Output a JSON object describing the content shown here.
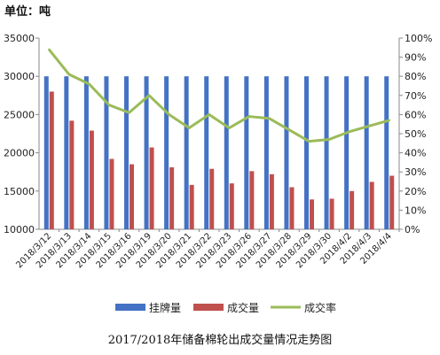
{
  "chart_data": {
    "type": "bar",
    "unit_label": "单位：吨",
    "title": "2017/2018年储备棉轮出成交量情况走势图",
    "categories": [
      "2018/3/12",
      "2018/3/13",
      "2018/3/14",
      "2018/3/15",
      "2018/3/16",
      "2018/3/19",
      "2018/3/20",
      "2018/3/21",
      "2018/3/22",
      "2018/3/23",
      "2018/3/26",
      "2018/3/27",
      "2018/3/28",
      "2018/3/29",
      "2018/3/30",
      "2018/4/2",
      "2018/4/3",
      "2018/4/4"
    ],
    "series": [
      {
        "name": "挂牌量",
        "axis": "left",
        "kind": "bar",
        "color": "#4472C4",
        "values": [
          30000,
          30000,
          30000,
          30000,
          30000,
          30000,
          30000,
          30000,
          30000,
          30000,
          30000,
          30000,
          30000,
          30000,
          30000,
          30000,
          30000,
          30000
        ]
      },
      {
        "name": "成交量",
        "axis": "left",
        "kind": "bar",
        "color": "#C0504D",
        "values": [
          28000,
          24200,
          22900,
          19200,
          18500,
          20700,
          18100,
          15800,
          17900,
          16000,
          17600,
          17200,
          15500,
          13900,
          14000,
          15000,
          16200,
          17000
        ]
      },
      {
        "name": "成交率",
        "axis": "right",
        "kind": "line",
        "color": "#9BBB59",
        "values": [
          94,
          81,
          76,
          65,
          61,
          70,
          60,
          53,
          60,
          53,
          59,
          58,
          52,
          46,
          47,
          51,
          54,
          57
        ]
      }
    ],
    "y_left": {
      "min": 10000,
      "max": 35000,
      "step": 5000,
      "ticks": [
        "10000",
        "15000",
        "20000",
        "25000",
        "30000",
        "35000"
      ]
    },
    "y_right": {
      "min": 0,
      "max": 100,
      "step": 10,
      "ticks": [
        "0%",
        "10%",
        "20%",
        "30%",
        "40%",
        "50%",
        "60%",
        "70%",
        "80%",
        "90%",
        "100%"
      ]
    },
    "grid": false,
    "legend_position": "bottom"
  }
}
